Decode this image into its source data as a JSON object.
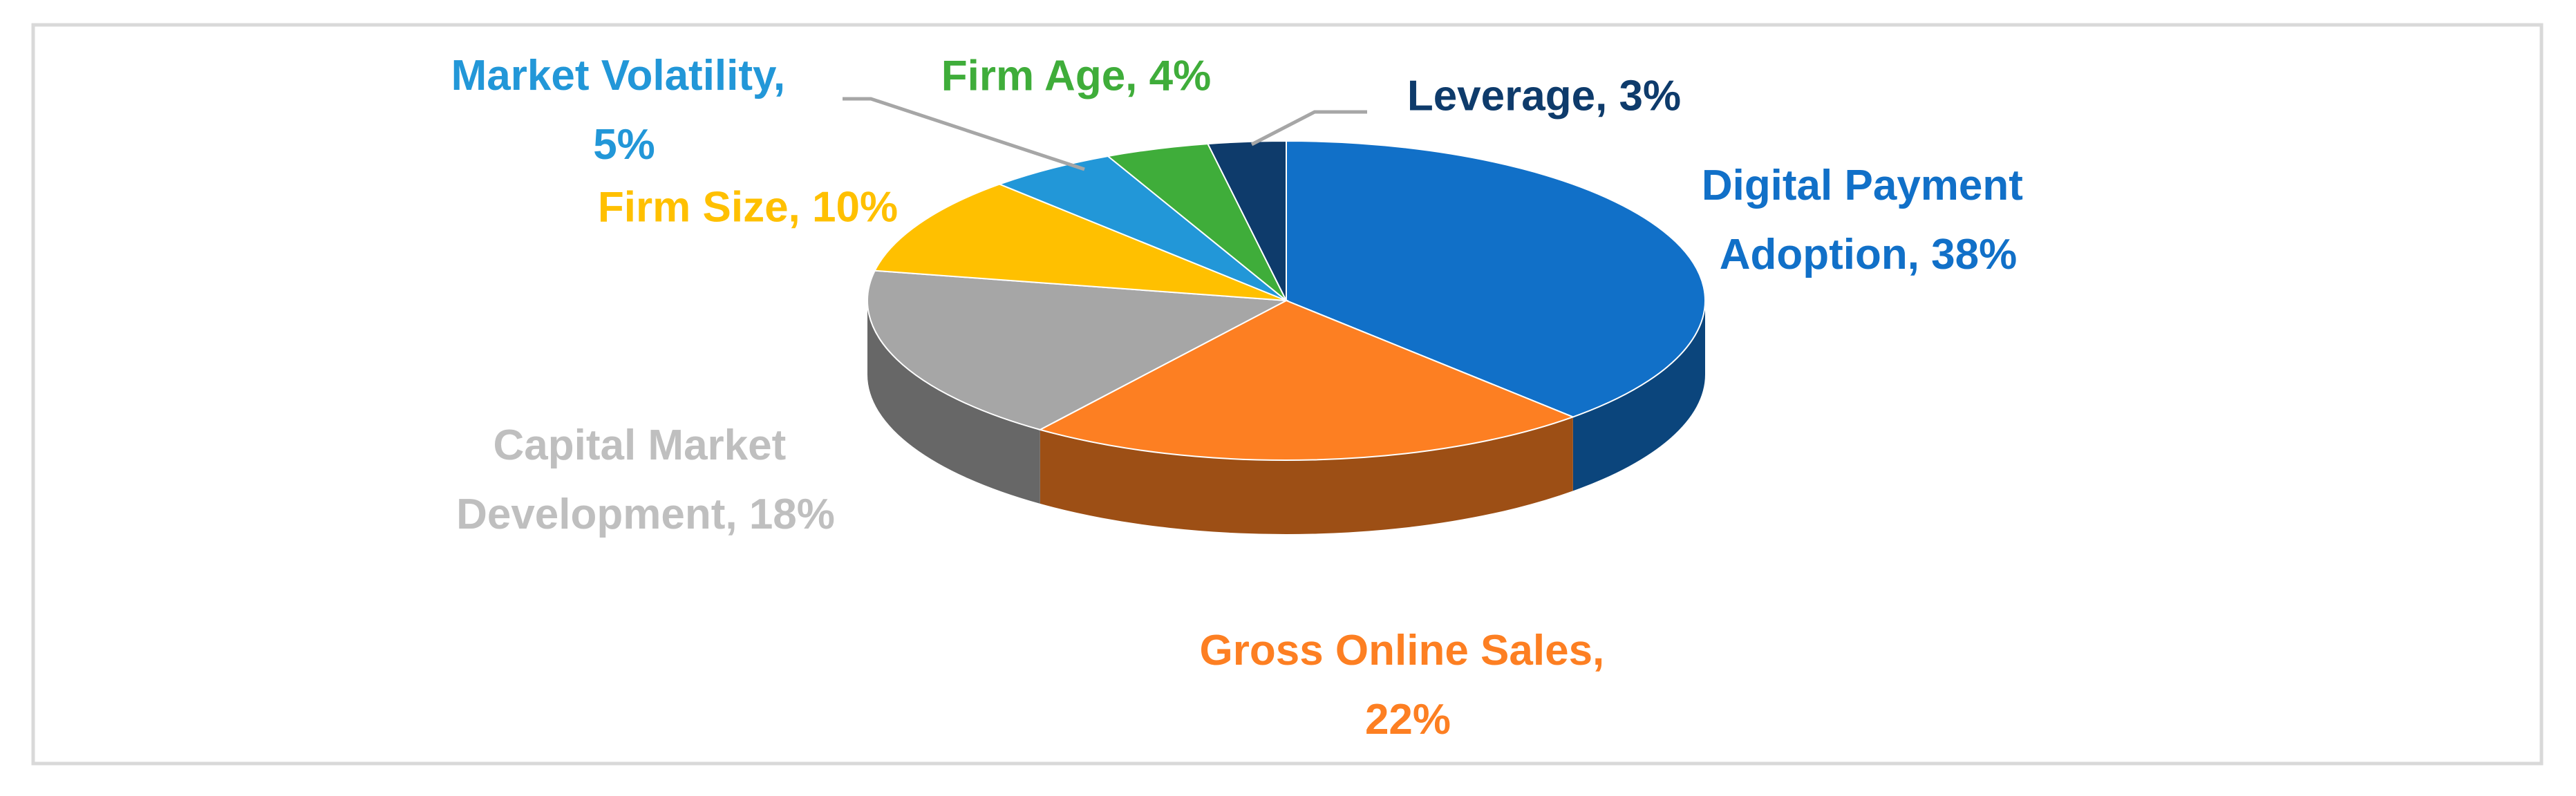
{
  "chart_data": {
    "type": "pie",
    "values": [
      38,
      22,
      18,
      10,
      5,
      4,
      3
    ],
    "value_labels": [
      "Digital Payment Adoption, 38%",
      "Gross Online Sales, 22%",
      "Capital Market Development, 18%",
      "Firm Size, 10%",
      "Market Volatility, 5%",
      "Firm Age, 4%",
      "Leverage, 3%"
    ],
    "colors": [
      "#1170c8",
      "#fd7f22",
      "#a6a6a6",
      "#ffc000",
      "#2297d8",
      "#3fad3a",
      "#0e3b6b"
    ]
  }
}
